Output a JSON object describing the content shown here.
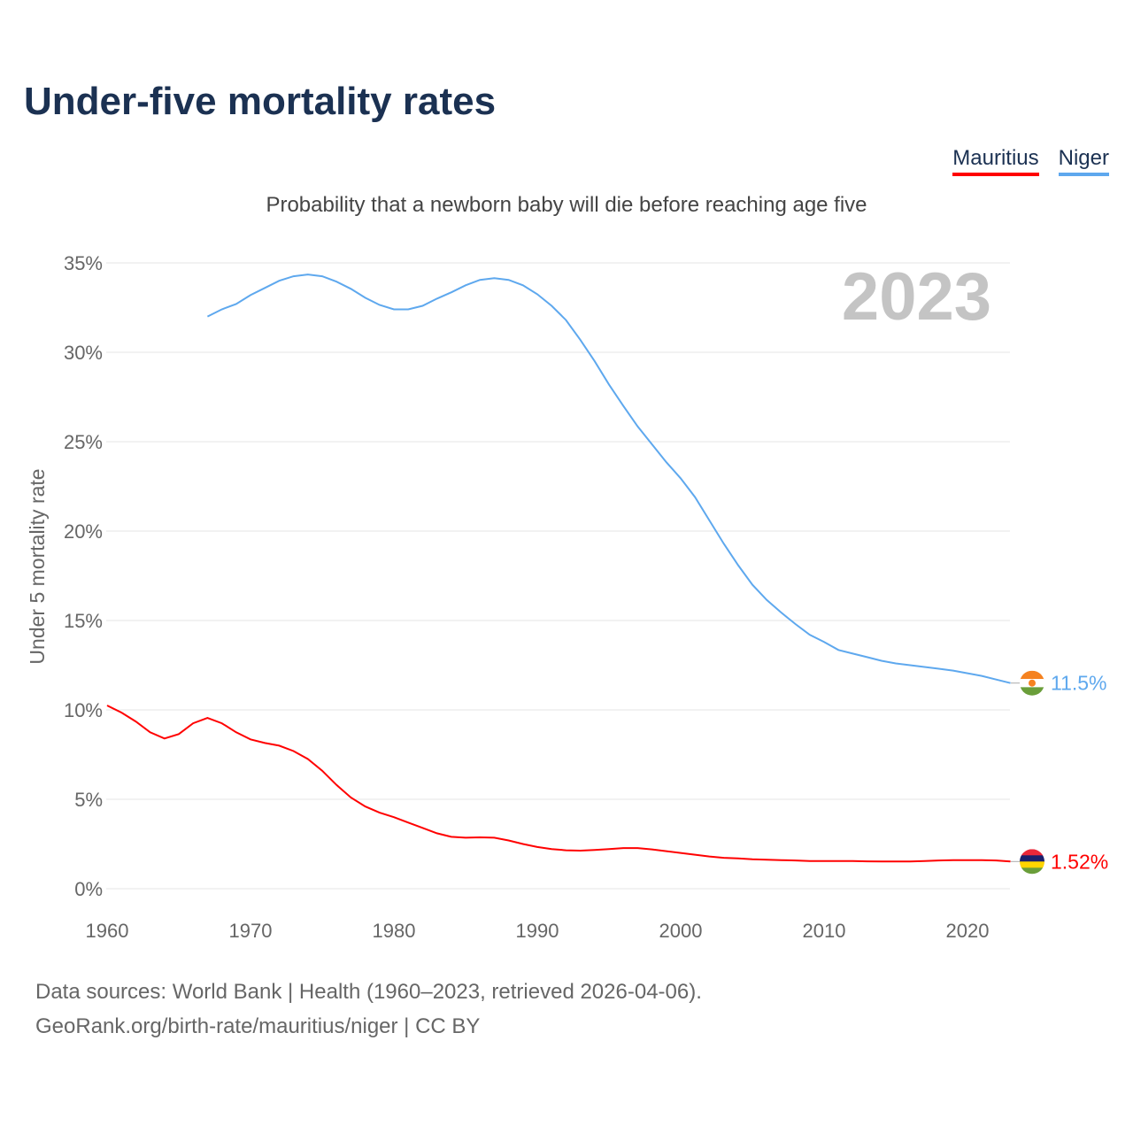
{
  "title": "Under-five mortality rates",
  "legend": [
    {
      "name": "Mauritius",
      "color": "#ff0000"
    },
    {
      "name": "Niger",
      "color": "#5ea8ee"
    }
  ],
  "footer": {
    "line1": "Data sources: World Bank | Health (1960–2023, retrieved 2026-04-06).",
    "line2": "GeoRank.org/birth-rate/mauritius/niger | CC BY"
  },
  "chart_data": {
    "type": "line",
    "title": "Under-five mortality rates",
    "subtitle": "Probability that a newborn baby will die before reaching age five",
    "ylabel": "Under 5 mortality rate",
    "xlabel": "",
    "year_label": "2023",
    "xlim": [
      1960,
      2023
    ],
    "ylim": [
      0,
      35
    ],
    "xticks": [
      "1960",
      "1970",
      "1980",
      "1990",
      "2000",
      "2010",
      "2020"
    ],
    "yticks": [
      "0%",
      "5%",
      "10%",
      "15%",
      "20%",
      "25%",
      "30%",
      "35%"
    ],
    "grid": true,
    "series": [
      {
        "name": "Niger",
        "color": "#5ea8ee",
        "start_year": 1967,
        "end_label": "11.5%",
        "values": [
          32.0,
          32.4,
          32.7,
          33.2,
          33.6,
          34.0,
          34.25,
          34.35,
          34.25,
          33.95,
          33.55,
          33.05,
          32.65,
          32.4,
          32.4,
          32.6,
          33.0,
          33.35,
          33.75,
          34.05,
          34.15,
          34.05,
          33.75,
          33.25,
          32.6,
          31.8,
          30.7,
          29.5,
          28.2,
          27.0,
          25.85,
          24.85,
          23.85,
          22.95,
          21.9,
          20.6,
          19.3,
          18.1,
          17.0,
          16.15,
          15.45,
          14.8,
          14.2,
          13.8,
          13.35,
          13.15,
          12.95,
          12.75,
          12.6,
          12.5,
          12.4,
          12.3,
          12.2,
          12.05,
          11.9,
          11.7,
          11.5
        ]
      },
      {
        "name": "Mauritius",
        "color": "#ff0000",
        "start_year": 1960,
        "end_label": "1.52%",
        "values": [
          10.25,
          9.85,
          9.35,
          8.75,
          8.4,
          8.65,
          9.25,
          9.55,
          9.25,
          8.75,
          8.35,
          8.15,
          8.0,
          7.7,
          7.25,
          6.6,
          5.8,
          5.1,
          4.6,
          4.25,
          4.0,
          3.7,
          3.4,
          3.1,
          2.9,
          2.85,
          2.87,
          2.85,
          2.7,
          2.5,
          2.33,
          2.22,
          2.15,
          2.13,
          2.17,
          2.22,
          2.27,
          2.27,
          2.2,
          2.1,
          2.0,
          1.9,
          1.8,
          1.73,
          1.7,
          1.65,
          1.62,
          1.6,
          1.58,
          1.55,
          1.55,
          1.55,
          1.55,
          1.53,
          1.52,
          1.52,
          1.52,
          1.55,
          1.58,
          1.6,
          1.6,
          1.6,
          1.58,
          1.52
        ]
      }
    ]
  }
}
